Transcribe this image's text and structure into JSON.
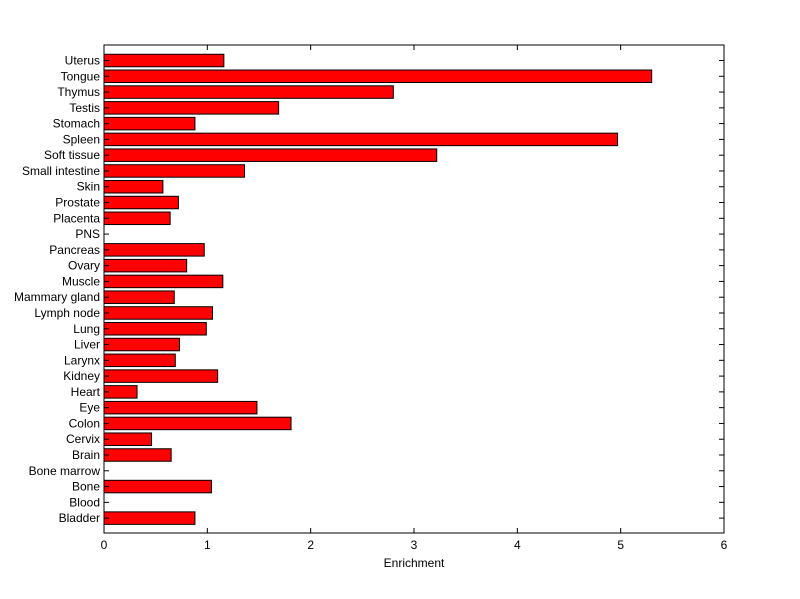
{
  "chart_data": {
    "type": "bar",
    "orientation": "horizontal",
    "title": "",
    "xlabel": "Enrichment",
    "ylabel": "",
    "xlim": [
      0,
      6
    ],
    "xticks": [
      0,
      1,
      2,
      3,
      4,
      5,
      6
    ],
    "grid": false,
    "bar_color": "#ff0000",
    "bar_edge_color": "#000000",
    "categories": [
      "Uterus",
      "Tongue",
      "Thymus",
      "Testis",
      "Stomach",
      "Spleen",
      "Soft tissue",
      "Small intestine",
      "Skin",
      "Prostate",
      "Placenta",
      "PNS",
      "Pancreas",
      "Ovary",
      "Muscle",
      "Mammary gland",
      "Lymph node",
      "Lung",
      "Liver",
      "Larynx",
      "Kidney",
      "Heart",
      "Eye",
      "Colon",
      "Cervix",
      "Brain",
      "Bone marrow",
      "Bone",
      "Blood",
      "Bladder"
    ],
    "values": [
      1.16,
      5.3,
      2.8,
      1.69,
      0.88,
      4.97,
      3.22,
      1.36,
      0.57,
      0.72,
      0.64,
      0,
      0.97,
      0.8,
      1.15,
      0.68,
      1.05,
      0.99,
      0.73,
      0.69,
      1.1,
      0.32,
      1.48,
      1.81,
      0.46,
      0.65,
      0,
      1.04,
      0,
      0.88
    ]
  }
}
